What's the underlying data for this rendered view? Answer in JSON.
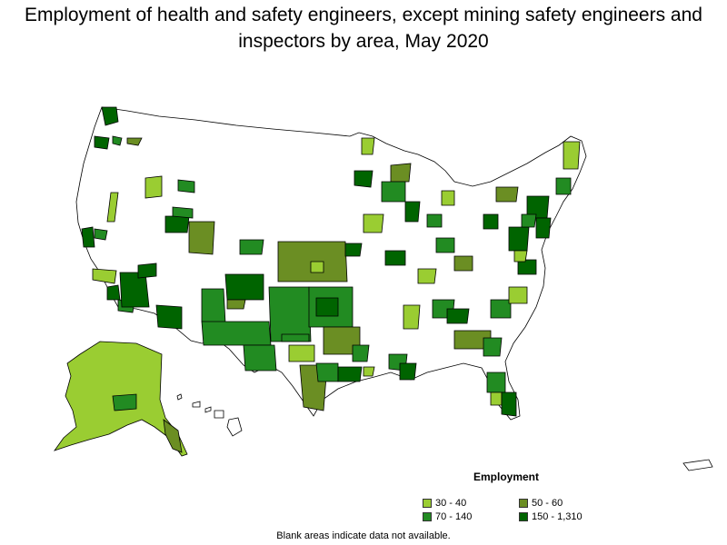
{
  "title": "Employment of health and safety engineers, except mining safety engineers and inspectors by area, May 2020",
  "legend": {
    "title": "Employment",
    "items": [
      {
        "label": "30 - 40",
        "color": "#9acd32"
      },
      {
        "label": "50 - 60",
        "color": "#6b8e23"
      },
      {
        "label": "70 - 140",
        "color": "#228b22"
      },
      {
        "label": "150 - 1,310",
        "color": "#006400"
      }
    ]
  },
  "footnote": "Blank areas indicate data not available.",
  "colors": {
    "blank": "#ffffff",
    "border": "#000000",
    "c1": "#9acd32",
    "c2": "#6b8e23",
    "c3": "#228b22",
    "c4": "#006400"
  }
}
